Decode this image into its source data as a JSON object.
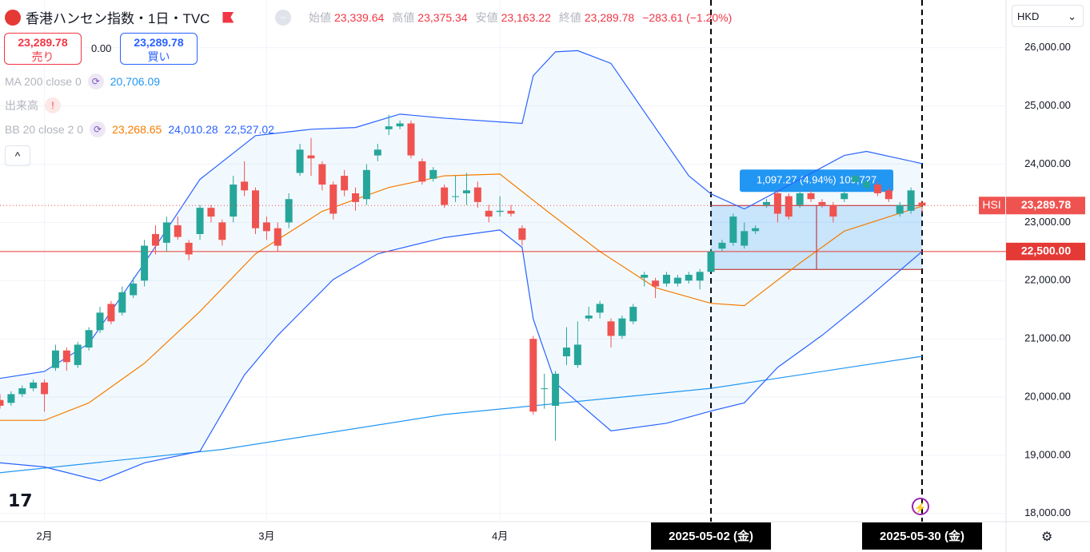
{
  "header": {
    "title": "香港ハンセン指数・1日・TVC",
    "ohlc": [
      {
        "label": "始値",
        "value": "23,339.64"
      },
      {
        "label": "高値",
        "value": "23,375.34"
      },
      {
        "label": "安値",
        "value": "23,163.22"
      },
      {
        "label": "終値",
        "value": "23,289.78"
      }
    ],
    "change": "−283.61 (−1.20%)",
    "sell_price": "23,289.78",
    "sell": "売り",
    "spread": "0.00",
    "buy_price": "23,289.78",
    "buy": "買い",
    "indicators": [
      {
        "name": "MA 200 close 0",
        "values": [
          "20,706.09"
        ]
      },
      {
        "name": "出来高",
        "values": []
      },
      {
        "name": "BB 20 close 2 0",
        "values": [
          "23,268.65",
          "24,010.28",
          "22,527.02"
        ]
      }
    ],
    "currency": "HKD"
  },
  "chart_data": {
    "type": "candlestick",
    "symbol": "HSI",
    "categories": [
      null,
      null,
      null,
      null,
      "2月",
      null,
      null,
      null,
      null,
      null,
      null,
      null,
      null,
      null,
      null,
      null,
      null,
      null,
      null,
      null,
      null,
      null,
      null,
      null,
      "3月",
      null,
      null,
      null,
      null,
      null,
      null,
      null,
      null,
      null,
      null,
      null,
      null,
      null,
      null,
      null,
      null,
      null,
      null,
      null,
      null,
      "4月",
      null,
      null,
      null,
      null,
      null,
      null,
      null,
      null,
      null,
      null,
      null,
      null,
      null,
      null,
      null,
      null,
      null,
      null,
      "2025-05-02 (金)",
      null,
      null,
      null,
      null,
      null,
      null,
      null,
      null,
      null,
      null,
      null,
      null,
      null,
      null,
      null,
      null,
      null,
      null,
      "2025-05-30 (金)"
    ],
    "open": [
      19950,
      19900,
      20050,
      20150,
      20250,
      20500,
      20800,
      20550,
      20850,
      21150,
      21600,
      21450,
      21750,
      22000,
      22800,
      22650,
      22950,
      22650,
      22800,
      23250,
      23000,
      23100,
      23700,
      23550,
      23000,
      22900,
      23000,
      23850,
      24150,
      24000,
      23650,
      23800,
      23500,
      23400,
      24150,
      24600,
      24650,
      24700,
      24050,
      23750,
      23600,
      23450,
      23500,
      23600,
      23200,
      23180,
      23200,
      22900,
      21000,
      20150,
      19850,
      20700,
      20550,
      21350,
      21450,
      21300,
      21050,
      21300,
      22050,
      22000,
      21950,
      21950,
      22000,
      22000,
      22150,
      22550,
      22650,
      22600,
      22850,
      23300,
      23500,
      23450,
      23300,
      23500,
      23350,
      23300,
      23400,
      23700,
      23600,
      23650,
      23550,
      23150,
      23200,
      23339.64
    ],
    "high": [
      20050,
      20100,
      20200,
      20300,
      20300,
      20900,
      20850,
      20950,
      21200,
      21550,
      21650,
      21900,
      22050,
      22700,
      22950,
      23100,
      23100,
      22700,
      23300,
      23300,
      23050,
      23800,
      24050,
      23600,
      23100,
      23000,
      23500,
      24350,
      24450,
      24050,
      23700,
      23900,
      23600,
      24000,
      24350,
      24850,
      24750,
      24750,
      24100,
      23950,
      23650,
      23800,
      23850,
      23700,
      23300,
      23450,
      23300,
      22950,
      21050,
      20400,
      20450,
      21200,
      21300,
      21550,
      21650,
      21350,
      21400,
      21600,
      22150,
      22050,
      22150,
      22100,
      22150,
      22200,
      22550,
      22700,
      23150,
      23000,
      22950,
      23400,
      23550,
      23500,
      23550,
      23550,
      23400,
      23350,
      23550,
      23850,
      23750,
      23700,
      23600,
      23350,
      23600,
      23375.34
    ],
    "low": [
      19800,
      19850,
      20000,
      20100,
      19750,
      20450,
      20450,
      20500,
      20800,
      21100,
      21250,
      21400,
      21700,
      21900,
      22450,
      22500,
      22700,
      22350,
      22700,
      23000,
      22600,
      23000,
      23450,
      22800,
      22700,
      22500,
      22900,
      23800,
      23800,
      23550,
      23050,
      23450,
      23200,
      23300,
      24050,
      24500,
      24600,
      24100,
      23650,
      23700,
      23250,
      23350,
      23300,
      23250,
      23000,
      23100,
      23100,
      22600,
      19700,
      19800,
      19250,
      20550,
      20500,
      21300,
      21350,
      20850,
      21000,
      21250,
      21900,
      21700,
      21900,
      21900,
      21950,
      21850,
      22150,
      22500,
      22600,
      22550,
      22800,
      23250,
      23000,
      23050,
      23250,
      23350,
      23250,
      23000,
      23350,
      23650,
      23550,
      23450,
      23350,
      23100,
      23150,
      23163.22
    ],
    "close": [
      19850,
      20050,
      20150,
      20250,
      20050,
      20800,
      20600,
      20900,
      21150,
      21450,
      21300,
      21800,
      21950,
      22600,
      22600,
      23000,
      22750,
      22450,
      23250,
      23100,
      22700,
      23650,
      23550,
      22900,
      22850,
      22600,
      23400,
      24250,
      24100,
      23650,
      23150,
      23550,
      23350,
      23900,
      24250,
      24650,
      24700,
      24150,
      23700,
      23900,
      23300,
      23450,
      23550,
      23350,
      23100,
      23200,
      23150,
      22700,
      19750,
      20150,
      20400,
      20850,
      20900,
      21400,
      21600,
      21050,
      21350,
      21550,
      22100,
      21900,
      22100,
      22050,
      22100,
      22150,
      22500,
      22650,
      23100,
      22850,
      22900,
      23350,
      23150,
      23100,
      23500,
      23400,
      23300,
      23100,
      23500,
      23800,
      23700,
      23500,
      23400,
      23300,
      23550,
      23289.78
    ],
    "up_color": "#26a69a",
    "down_color": "#ef5350",
    "overlays": [
      {
        "color": "#2196f3",
        "x": [
          0,
          20,
          40,
          64,
          83
        ],
        "values": [
          18700,
          19100,
          19700,
          20150,
          20700
        ]
      },
      {
        "color": "#f57c00",
        "x": [
          0,
          4,
          8,
          13,
          18,
          23,
          29,
          35,
          40,
          45,
          49,
          54,
          59,
          64,
          67,
          72,
          76,
          83
        ],
        "values": [
          19600,
          19600,
          19900,
          20580,
          21470,
          22460,
          23190,
          23600,
          23800,
          23830,
          23230,
          22500,
          21880,
          21610,
          21570,
          22300,
          22850,
          23280
        ]
      },
      {
        "color": "#2962ff",
        "x": [
          0,
          4,
          8,
          13,
          18,
          23,
          28,
          32,
          36,
          40,
          47,
          48,
          50,
          52,
          55,
          58,
          62,
          64,
          67,
          72,
          76,
          78,
          83
        ],
        "values": [
          20320,
          20440,
          20920,
          22300,
          23740,
          24490,
          24600,
          24630,
          24860,
          24790,
          24700,
          25520,
          25930,
          25950,
          25730,
          24900,
          23800,
          23490,
          23230,
          23740,
          24150,
          24220,
          24010
        ]
      },
      {
        "color": "#2962ff",
        "x": [
          0,
          4,
          9,
          13,
          18,
          22,
          25,
          30,
          34,
          40,
          45,
          47,
          48,
          50,
          55,
          60,
          64,
          67,
          70,
          74,
          78,
          83
        ],
        "values": [
          18870,
          18800,
          18560,
          18870,
          19070,
          20380,
          21060,
          22020,
          22460,
          22740,
          22870,
          22570,
          21340,
          20240,
          19420,
          19550,
          19760,
          19900,
          20510,
          21060,
          21680,
          22500
        ]
      }
    ],
    "ylim": [
      17860,
      26820
    ],
    "yticks": [
      {
        "value": 18000,
        "label": "18,000.00"
      },
      {
        "value": 19000,
        "label": "19,000.00"
      },
      {
        "value": 20000,
        "label": "20,000.00"
      },
      {
        "value": 21000,
        "label": "21,000.00"
      },
      {
        "value": 22000,
        "label": "22,000.00"
      },
      {
        "value": 23000,
        "label": "23,000.00"
      },
      {
        "value": 24000,
        "label": "24,000.00"
      },
      {
        "value": 25000,
        "label": "25,000.00"
      },
      {
        "value": 26000,
        "label": "26,000.00"
      }
    ],
    "last_price": {
      "value": 23289.78,
      "label": "23,289.78"
    },
    "hline": {
      "value": 22500,
      "label": "22,500.00",
      "color": "#e53935"
    },
    "measure": {
      "start": 64,
      "end": 83,
      "from": 22192.51,
      "to": 23289.78,
      "label": "1,097.27 (4.94%) 109,727"
    }
  }
}
